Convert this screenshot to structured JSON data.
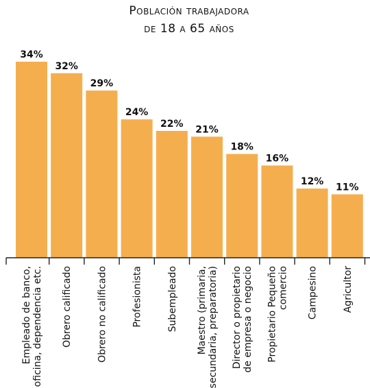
{
  "chart_data": {
    "type": "bar",
    "title_lines": [
      "Población trabajadora",
      "de 18 a 65 años"
    ],
    "categories": [
      [
        "Empleado de banco,",
        "oficina, dependencia etc."
      ],
      [
        "Obrero calificado"
      ],
      [
        "Obrero no calificado"
      ],
      [
        "Profesionista"
      ],
      [
        "Subempleado"
      ],
      [
        "Maestro (primaria,",
        "secundaria, preparatoria)"
      ],
      [
        "Director o propietario",
        "de empresa o negocio"
      ],
      [
        "Propietario Pequeño",
        "comercio"
      ],
      [
        "Campesino"
      ],
      [
        "Agricultor"
      ]
    ],
    "values": [
      34,
      32,
      29,
      24,
      22,
      21,
      18,
      16,
      12,
      11
    ],
    "value_labels": [
      "34%",
      "32%",
      "29%",
      "24%",
      "22%",
      "21%",
      "18%",
      "16%",
      "12%",
      "11%"
    ],
    "ylim": [
      0,
      34
    ],
    "grid": false,
    "colors": {
      "bar": "#F5AE4E",
      "axis": "#222222",
      "text": "#111111"
    }
  }
}
